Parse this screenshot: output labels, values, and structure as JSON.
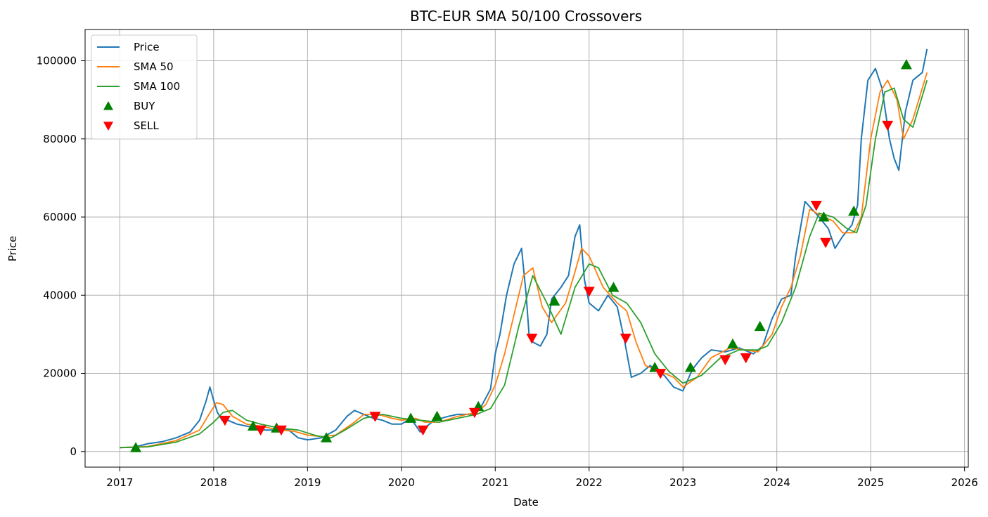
{
  "chart_data": {
    "type": "line",
    "title": "BTC-EUR SMA 50/100 Crossovers",
    "xlabel": "Date",
    "ylabel": "Price",
    "xlim": [
      2016.63,
      2026.04
    ],
    "ylim": [
      -4000,
      108000
    ],
    "xticks": [
      2017,
      2018,
      2019,
      2020,
      2021,
      2022,
      2023,
      2024,
      2025,
      2026
    ],
    "xtick_labels": [
      "2017",
      "2018",
      "2019",
      "2020",
      "2021",
      "2022",
      "2023",
      "2024",
      "2025",
      "2026"
    ],
    "yticks": [
      0,
      20000,
      40000,
      60000,
      80000,
      100000
    ],
    "ytick_labels": [
      "0",
      "20000",
      "40000",
      "60000",
      "80000",
      "100000"
    ],
    "grid": true,
    "legend": "top-left",
    "series": [
      {
        "name": "Price",
        "color": "#1f77b4",
        "x": [
          2017.0,
          2017.15,
          2017.3,
          2017.45,
          2017.6,
          2017.75,
          2017.85,
          2017.92,
          2017.96,
          2018.0,
          2018.04,
          2018.09,
          2018.15,
          2018.25,
          2018.35,
          2018.45,
          2018.55,
          2018.65,
          2018.8,
          2018.9,
          2019.0,
          2019.15,
          2019.3,
          2019.42,
          2019.5,
          2019.6,
          2019.7,
          2019.8,
          2019.9,
          2020.0,
          2020.1,
          2020.2,
          2020.22,
          2020.35,
          2020.5,
          2020.6,
          2020.75,
          2020.85,
          2020.95,
          2021.0,
          2021.05,
          2021.12,
          2021.2,
          2021.28,
          2021.33,
          2021.36,
          2021.4,
          2021.48,
          2021.55,
          2021.6,
          2021.7,
          2021.78,
          2021.85,
          2021.9,
          2021.95,
          2022.0,
          2022.1,
          2022.2,
          2022.3,
          2022.38,
          2022.45,
          2022.55,
          2022.65,
          2022.8,
          2022.9,
          2023.0,
          2023.1,
          2023.2,
          2023.3,
          2023.45,
          2023.6,
          2023.75,
          2023.85,
          2023.95,
          2024.05,
          2024.15,
          2024.2,
          2024.3,
          2024.45,
          2024.55,
          2024.62,
          2024.7,
          2024.8,
          2024.86,
          2024.9,
          2024.97,
          2025.05,
          2025.12,
          2025.2,
          2025.25,
          2025.3,
          2025.37,
          2025.45,
          2025.55,
          2025.6
        ],
        "y": [
          1000,
          1100,
          2000,
          2500,
          3500,
          5000,
          8000,
          13000,
          16500,
          13000,
          10000,
          8000,
          8000,
          7000,
          6500,
          6000,
          5500,
          5500,
          5500,
          3500,
          3000,
          3500,
          5500,
          9000,
          10500,
          9500,
          8500,
          8000,
          7000,
          7000,
          8500,
          5000,
          5500,
          8000,
          9000,
          9500,
          9500,
          11500,
          16000,
          25000,
          30000,
          40000,
          48000,
          52000,
          40000,
          30000,
          28000,
          27000,
          30000,
          39000,
          42000,
          45000,
          55000,
          58000,
          44000,
          38000,
          36000,
          40000,
          37000,
          28000,
          19000,
          20000,
          22000,
          19500,
          16500,
          15500,
          21000,
          24000,
          26000,
          25500,
          26500,
          25000,
          27000,
          34000,
          39000,
          40000,
          50000,
          64000,
          60000,
          57000,
          52000,
          55000,
          58000,
          63000,
          80000,
          95000,
          98000,
          93000,
          80000,
          75000,
          72000,
          87000,
          95000,
          97000,
          103000
        ]
      },
      {
        "name": "SMA 50",
        "color": "#ff7f0e",
        "x": [
          2017.0,
          2017.3,
          2017.6,
          2017.85,
          2017.95,
          2018.03,
          2018.1,
          2018.2,
          2018.35,
          2018.5,
          2018.7,
          2018.85,
          2019.0,
          2019.15,
          2019.3,
          2019.5,
          2019.6,
          2019.75,
          2019.9,
          2020.0,
          2020.15,
          2020.25,
          2020.4,
          2020.6,
          2020.8,
          2020.9,
          2021.0,
          2021.1,
          2021.2,
          2021.3,
          2021.4,
          2021.5,
          2021.6,
          2021.75,
          2021.85,
          2021.92,
          2022.0,
          2022.15,
          2022.3,
          2022.4,
          2022.5,
          2022.6,
          2022.75,
          2022.9,
          2023.0,
          2023.15,
          2023.3,
          2023.5,
          2023.65,
          2023.8,
          2023.95,
          2024.05,
          2024.15,
          2024.25,
          2024.35,
          2024.5,
          2024.6,
          2024.7,
          2024.82,
          2024.9,
          2025.0,
          2025.1,
          2025.18,
          2025.28,
          2025.35,
          2025.45,
          2025.6
        ],
        "y": [
          1000,
          1300,
          2800,
          5500,
          9500,
          12500,
          12000,
          9000,
          7000,
          6500,
          5500,
          5200,
          4200,
          3800,
          4200,
          7500,
          9500,
          9500,
          8500,
          8000,
          8500,
          7500,
          7500,
          9000,
          10000,
          12000,
          17000,
          25000,
          35000,
          45000,
          47000,
          37000,
          33000,
          38000,
          46000,
          52000,
          50000,
          42000,
          38000,
          36000,
          28000,
          22000,
          20500,
          19000,
          16500,
          19000,
          24000,
          26500,
          26000,
          25500,
          30000,
          37000,
          42000,
          50000,
          62000,
          60000,
          59000,
          56000,
          56000,
          60000,
          80000,
          92000,
          95000,
          90000,
          80000,
          85000,
          97000
        ]
      },
      {
        "name": "SMA 100",
        "color": "#2ca02c",
        "x": [
          2017.0,
          2017.3,
          2017.6,
          2017.85,
          2018.0,
          2018.1,
          2018.2,
          2018.35,
          2018.5,
          2018.7,
          2018.9,
          2019.1,
          2019.25,
          2019.4,
          2019.6,
          2019.8,
          2020.0,
          2020.2,
          2020.4,
          2020.6,
          2020.8,
          2020.95,
          2021.1,
          2021.25,
          2021.4,
          2021.55,
          2021.7,
          2021.85,
          2022.0,
          2022.1,
          2022.25,
          2022.4,
          2022.55,
          2022.7,
          2022.85,
          2023.0,
          2023.2,
          2023.4,
          2023.6,
          2023.8,
          2023.9,
          2024.05,
          2024.2,
          2024.35,
          2024.45,
          2024.6,
          2024.75,
          2024.85,
          2024.95,
          2025.05,
          2025.15,
          2025.25,
          2025.35,
          2025.45,
          2025.6
        ],
        "y": [
          1000,
          1200,
          2400,
          4500,
          7500,
          10000,
          10500,
          8000,
          7000,
          6000,
          5500,
          4000,
          3500,
          5500,
          8500,
          9500,
          8500,
          8000,
          7500,
          8500,
          9500,
          11000,
          17000,
          32000,
          45000,
          38000,
          30000,
          42000,
          48000,
          47000,
          40000,
          38000,
          33000,
          25000,
          20500,
          17500,
          19500,
          24000,
          26000,
          26000,
          27000,
          33000,
          42000,
          55000,
          61000,
          60000,
          57000,
          56000,
          63000,
          80000,
          92000,
          93000,
          85000,
          83000,
          95000
        ]
      }
    ],
    "markers": [
      {
        "name": "BUY",
        "color": "#008000",
        "shape": "triangle-up",
        "x": [
          2017.17,
          2018.42,
          2018.67,
          2019.2,
          2020.1,
          2020.38,
          2020.82,
          2021.63,
          2022.26,
          2022.7,
          2023.08,
          2023.53,
          2023.82,
          2024.5,
          2024.82,
          2025.38
        ],
        "y": [
          1000,
          6500,
          6000,
          3500,
          8500,
          9000,
          11500,
          38500,
          42000,
          21500,
          21500,
          27500,
          32000,
          60000,
          61500,
          99000
        ]
      },
      {
        "name": "SELL",
        "color": "#ff0000",
        "shape": "triangle-down",
        "x": [
          2018.12,
          2018.5,
          2018.72,
          2019.72,
          2020.23,
          2020.78,
          2021.39,
          2022.0,
          2022.39,
          2022.76,
          2023.45,
          2023.67,
          2024.42,
          2024.52,
          2025.18
        ],
        "y": [
          8000,
          5500,
          5500,
          9000,
          5500,
          10000,
          29000,
          41000,
          29000,
          20000,
          23500,
          24000,
          63000,
          53500,
          83500
        ]
      }
    ]
  }
}
